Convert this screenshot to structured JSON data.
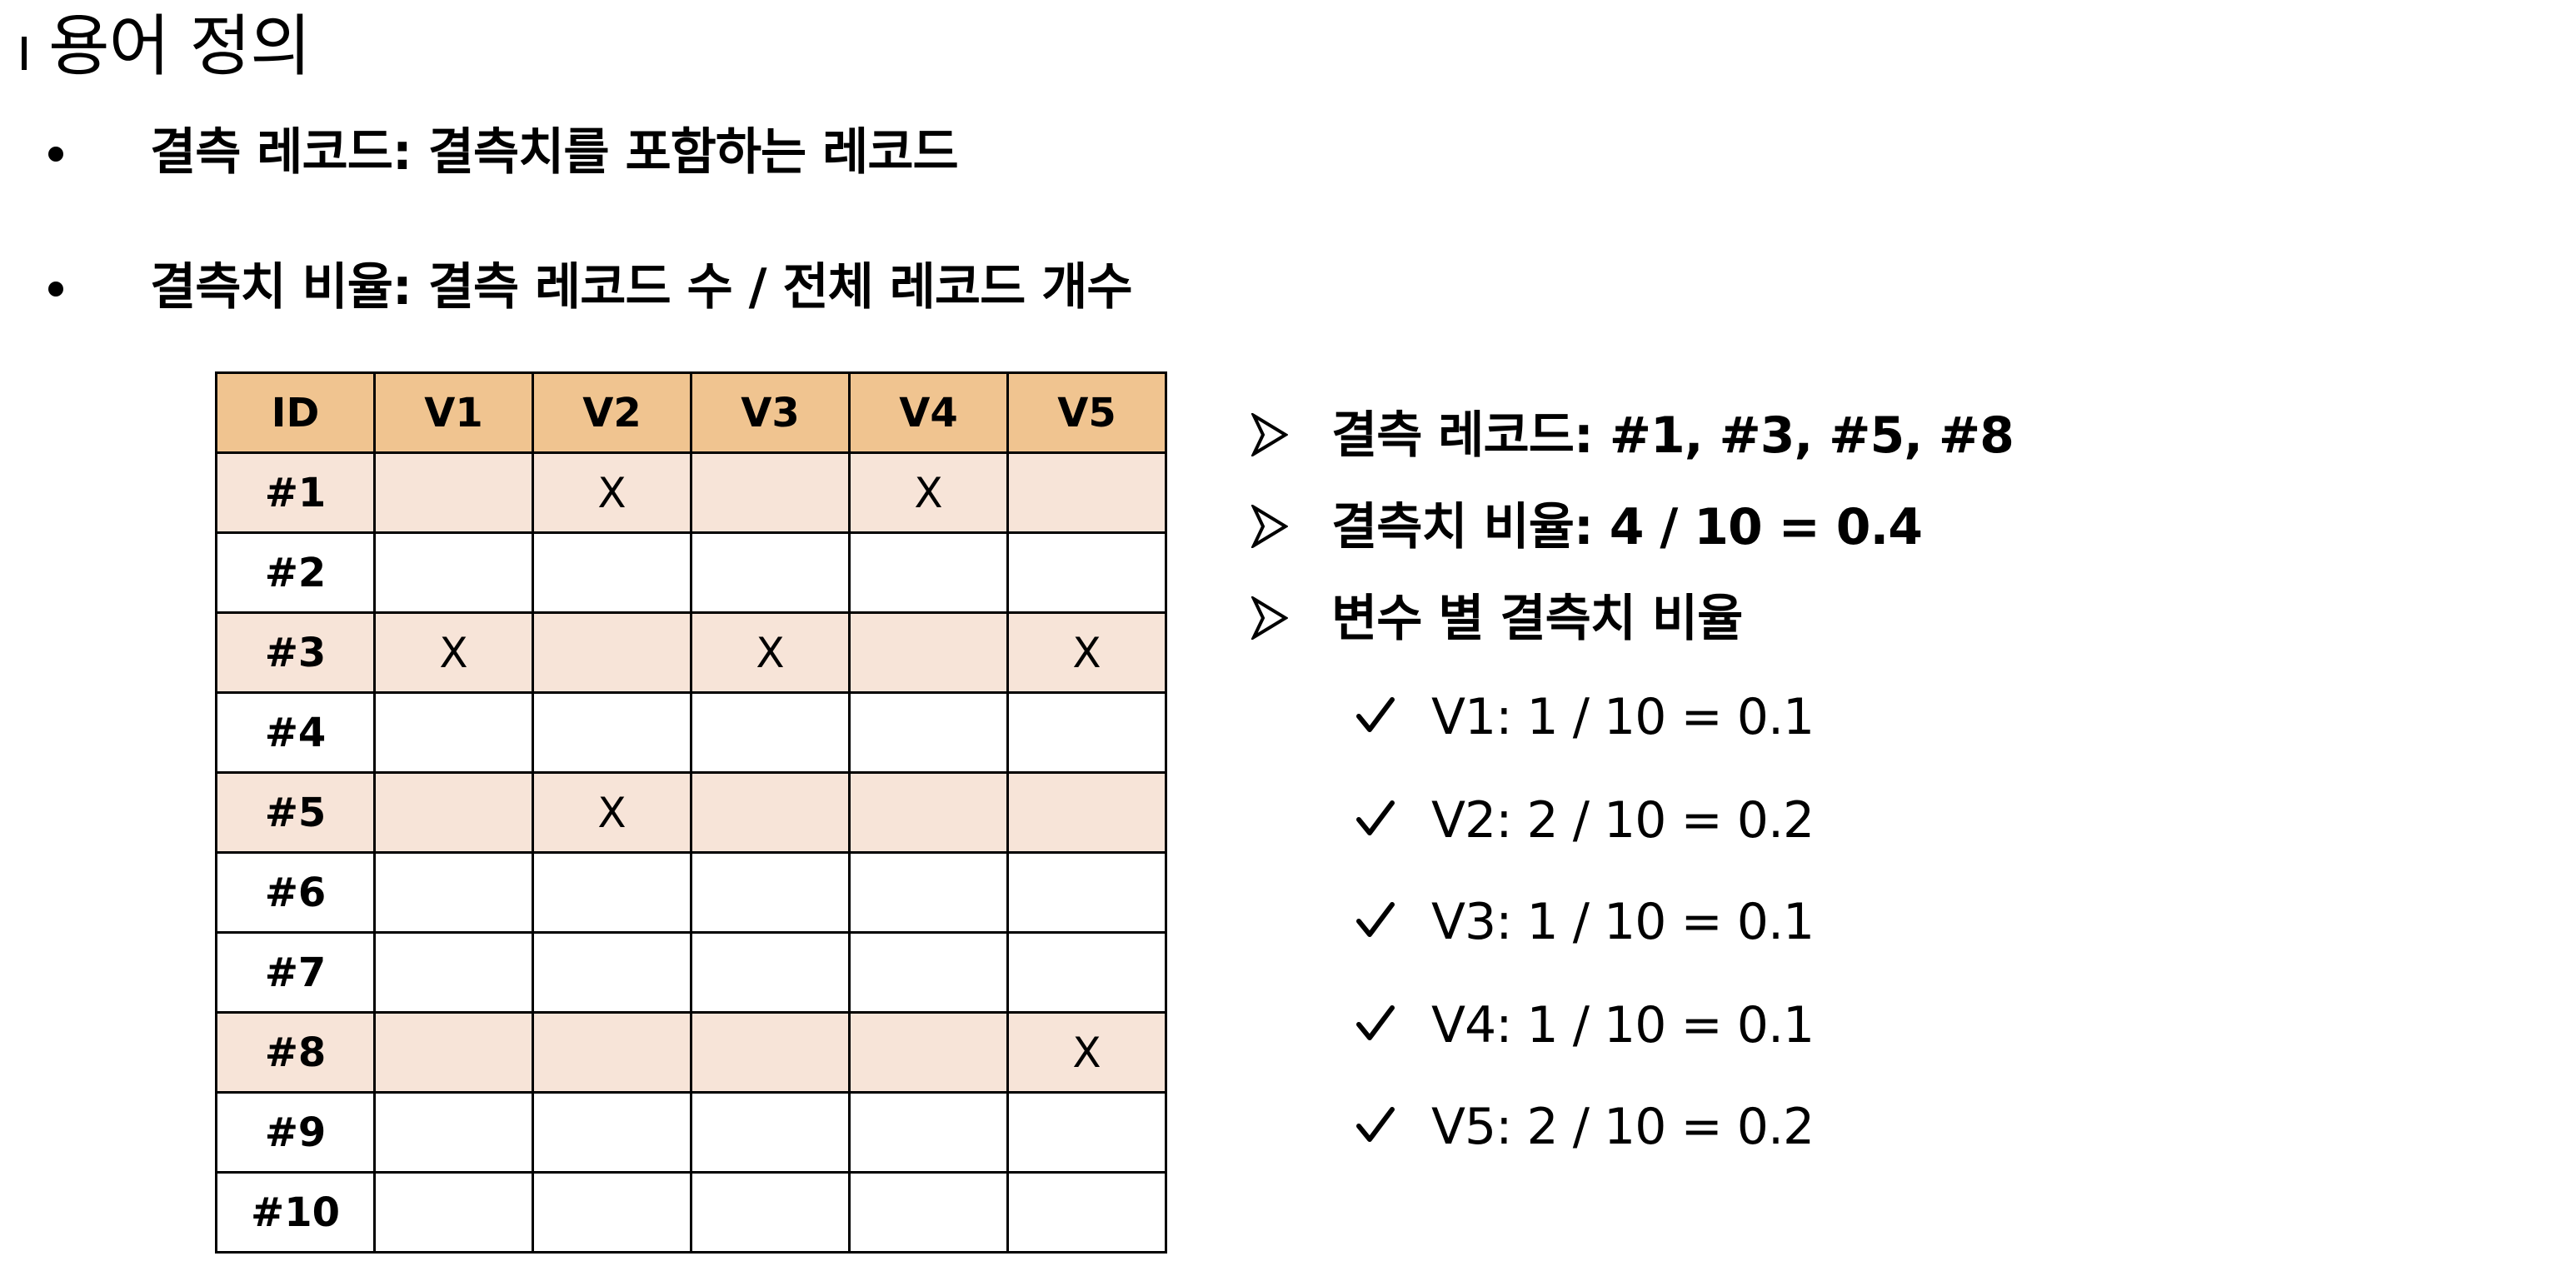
{
  "title": "용어 정의",
  "definitions": [
    "결측 레코드: 결측치를 포함하는 레코드",
    "결측치 비율: 결측 레코드 수 / 전체 레코드 개수"
  ],
  "table": {
    "headers": [
      "ID",
      "V1",
      "V2",
      "V3",
      "V4",
      "V5"
    ],
    "rows": [
      {
        "id": "#1",
        "cells": [
          "",
          "X",
          "",
          "X",
          ""
        ],
        "has_missing": true
      },
      {
        "id": "#2",
        "cells": [
          "",
          "",
          "",
          "",
          ""
        ],
        "has_missing": false
      },
      {
        "id": "#3",
        "cells": [
          "X",
          "",
          "X",
          "",
          "X"
        ],
        "has_missing": true
      },
      {
        "id": "#4",
        "cells": [
          "",
          "",
          "",
          "",
          ""
        ],
        "has_missing": false
      },
      {
        "id": "#5",
        "cells": [
          "",
          "X",
          "",
          "",
          ""
        ],
        "has_missing": true
      },
      {
        "id": "#6",
        "cells": [
          "",
          "",
          "",
          "",
          ""
        ],
        "has_missing": false
      },
      {
        "id": "#7",
        "cells": [
          "",
          "",
          "",
          "",
          ""
        ],
        "has_missing": false
      },
      {
        "id": "#8",
        "cells": [
          "",
          "",
          "",
          "",
          "X"
        ],
        "has_missing": true
      },
      {
        "id": "#9",
        "cells": [
          "",
          "",
          "",
          "",
          ""
        ],
        "has_missing": false
      },
      {
        "id": "#10",
        "cells": [
          "",
          "",
          "",
          "",
          ""
        ],
        "has_missing": false
      }
    ],
    "colors": {
      "header_fill": "#f0c490",
      "missing_row_fill": "#f7e4d8",
      "border": "#000000"
    }
  },
  "notes": [
    "결측 레코드: #1, #3, #5, #8",
    "결측치 비율: 4 / 10 = 0.4",
    "변수 별 결측치 비율"
  ],
  "note_icon": "arrow-bullet-icon",
  "variable_ratios": [
    "V1: 1 / 10 = 0.1",
    "V2: 2 / 10 = 0.2",
    "V3: 1 / 10 = 0.1",
    "V4: 1 / 10 = 0.1",
    "V5: 2 / 10 = 0.2"
  ],
  "variable_icon": "check-icon"
}
